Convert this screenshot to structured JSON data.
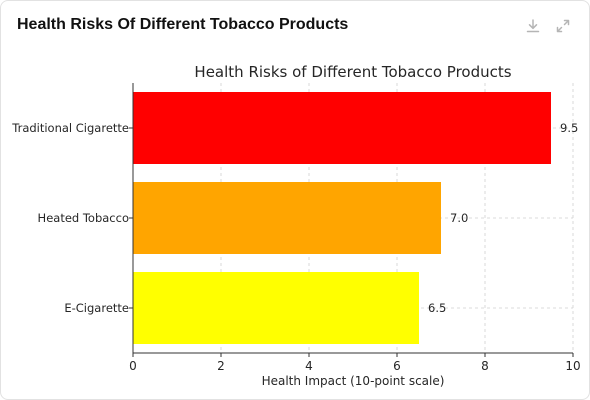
{
  "card": {
    "title": "Health Risks Of Different Tobacco Products",
    "toolbar": [
      {
        "icon": "download-icon"
      },
      {
        "icon": "expand-icon"
      }
    ]
  },
  "chart_data": {
    "type": "bar",
    "orientation": "horizontal",
    "title": "Health Risks of Different Tobacco Products",
    "xlabel": "Health Impact (10-point scale)",
    "ylabel": "",
    "categories": [
      "Traditional Cigarette",
      "Heated Tobacco",
      "E-Cigarette"
    ],
    "values": [
      9.5,
      7.0,
      6.5
    ],
    "value_labels": [
      "9.5",
      "7.0",
      "6.5"
    ],
    "colors": [
      "#ff0000",
      "#ffa500",
      "#ffff00"
    ],
    "xlim": [
      0,
      10
    ],
    "xticks": [
      0,
      2,
      4,
      6,
      8,
      10
    ],
    "grid": true,
    "legend": "none"
  }
}
